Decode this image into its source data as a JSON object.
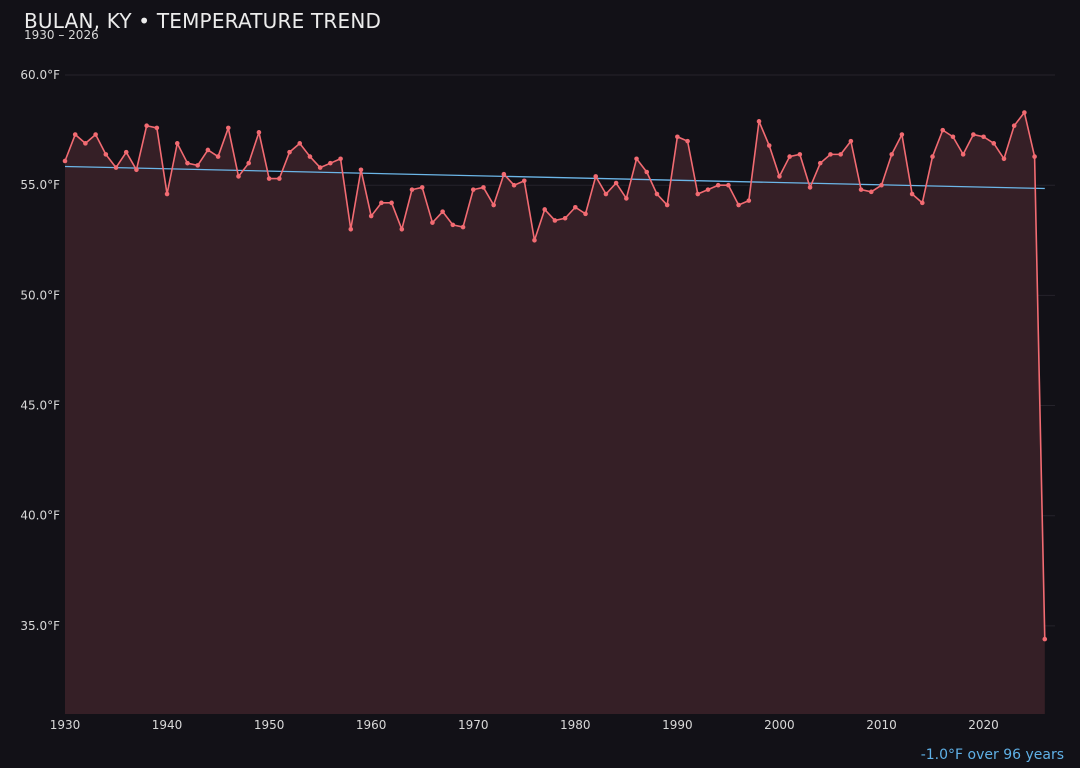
{
  "header": {
    "title": "BULAN, KY • TEMPERATURE TREND",
    "subtitle": "1930 – 2026"
  },
  "footnote": "-1.0°F over 96 years",
  "colors": {
    "background": "#121117",
    "series": "#f26b72",
    "area_fill": "#351f26",
    "trend": "#6cb6e8",
    "grid": "#25232b",
    "text": "#d8d8d8"
  },
  "chart_data": {
    "type": "line",
    "title": "BULAN, KY • TEMPERATURE TREND",
    "subtitle": "1930 – 2026",
    "xlabel": "",
    "ylabel": "",
    "xlim": [
      1930,
      2027
    ],
    "ylim": [
      31,
      61.5
    ],
    "grid": true,
    "area_fill": true,
    "x_ticks": [
      1930,
      1940,
      1950,
      1960,
      1970,
      1980,
      1990,
      2000,
      2010,
      2020
    ],
    "x_tick_labels": [
      "1930",
      "1940",
      "1950",
      "1960",
      "1970",
      "1980",
      "1990",
      "2000",
      "2010",
      "2020"
    ],
    "y_ticks": [
      35,
      40,
      45,
      50,
      55,
      60
    ],
    "y_tick_labels": [
      "35.0°F",
      "40.0°F",
      "45.0°F",
      "50.0°F",
      "55.0°F",
      "60.0°F"
    ],
    "x": [
      1930,
      1931,
      1932,
      1933,
      1934,
      1935,
      1936,
      1937,
      1938,
      1939,
      1940,
      1941,
      1942,
      1943,
      1944,
      1945,
      1946,
      1947,
      1948,
      1949,
      1950,
      1951,
      1952,
      1953,
      1954,
      1955,
      1956,
      1957,
      1958,
      1959,
      1960,
      1961,
      1962,
      1963,
      1964,
      1965,
      1966,
      1967,
      1968,
      1969,
      1970,
      1971,
      1972,
      1973,
      1974,
      1975,
      1976,
      1977,
      1978,
      1979,
      1980,
      1981,
      1982,
      1983,
      1984,
      1985,
      1986,
      1987,
      1988,
      1989,
      1990,
      1991,
      1992,
      1993,
      1994,
      1995,
      1996,
      1997,
      1998,
      1999,
      2000,
      2001,
      2002,
      2003,
      2004,
      2005,
      2006,
      2007,
      2008,
      2009,
      2010,
      2011,
      2012,
      2013,
      2014,
      2015,
      2016,
      2017,
      2018,
      2019,
      2020,
      2021,
      2022,
      2023,
      2024,
      2025,
      2026
    ],
    "series": [
      {
        "values": [
          56.1,
          57.3,
          56.9,
          57.3,
          56.4,
          55.8,
          56.5,
          55.7,
          57.7,
          57.6,
          54.6,
          56.9,
          56.0,
          55.9,
          56.6,
          56.3,
          57.6,
          55.4,
          56.0,
          57.4,
          55.3,
          55.3,
          56.5,
          56.9,
          56.3,
          55.8,
          56.0,
          56.2,
          53.0,
          55.7,
          53.6,
          54.2,
          54.2,
          53.0,
          54.8,
          54.9,
          53.3,
          53.8,
          53.2,
          53.1,
          54.8,
          54.9,
          54.1,
          55.5,
          55.0,
          55.2,
          52.5,
          53.9,
          53.4,
          53.5,
          54.0,
          53.7,
          55.4,
          54.6,
          55.1,
          54.4,
          56.2,
          55.6,
          54.6,
          54.1,
          57.2,
          57.0,
          54.6,
          54.8,
          55.0,
          55.0,
          54.1,
          54.3,
          57.9,
          56.8,
          55.4,
          56.3,
          56.4,
          54.9,
          56.0,
          56.4,
          56.4,
          57.0,
          54.8,
          54.7,
          55.0,
          56.4,
          57.3,
          54.6,
          54.2,
          56.3,
          57.5,
          57.2,
          56.4,
          57.3,
          57.2,
          56.9,
          56.2,
          57.7,
          58.3,
          56.3,
          34.4
        ]
      }
    ],
    "trend_line": {
      "x": [
        1930,
        2026
      ],
      "values": [
        55.85,
        54.85
      ]
    }
  }
}
